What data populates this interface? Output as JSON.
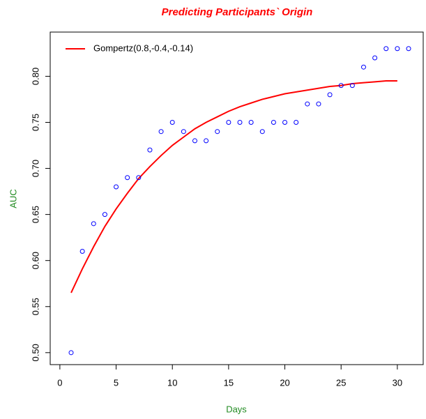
{
  "chart_data": {
    "type": "scatter",
    "title": "Predicting Participants` Origin",
    "xlabel": "Days",
    "ylabel": "AUC",
    "xlim": [
      -0.86,
      32.3
    ],
    "ylim": [
      0.487,
      0.848
    ],
    "xticks": [
      0,
      5,
      10,
      15,
      20,
      25,
      30
    ],
    "yticks": [
      {
        "value": 0.5,
        "label": "0.50"
      },
      0.55,
      {
        "value": 0.6,
        "label": "0.60"
      },
      0.65,
      {
        "value": 0.7,
        "label": "0.70"
      },
      0.75,
      {
        "value": 0.8,
        "label": "0.80"
      }
    ],
    "legend": "topleft",
    "series": [
      {
        "type": "line",
        "name": "Gompertz(0.8,-0.4,-0.14)",
        "color": "#ff0000",
        "x": [
          1,
          2,
          3,
          4,
          5,
          6,
          7,
          8,
          9,
          10,
          11,
          12,
          13,
          14,
          15,
          16,
          17,
          18,
          19,
          20,
          21,
          22,
          23,
          24,
          25,
          26,
          27,
          28,
          29,
          30
        ],
        "values": [
          0.565,
          0.591,
          0.615,
          0.637,
          0.656,
          0.673,
          0.689,
          0.702,
          0.714,
          0.725,
          0.734,
          0.743,
          0.75,
          0.756,
          0.762,
          0.767,
          0.771,
          0.775,
          0.778,
          0.781,
          0.783,
          0.785,
          0.787,
          0.789,
          0.79,
          0.792,
          0.793,
          0.794,
          0.795,
          0.795
        ]
      },
      {
        "type": "scatter",
        "color": "#0000ff",
        "x": [
          1,
          2,
          3,
          4,
          5,
          6,
          7,
          8,
          9,
          10,
          11,
          12,
          13,
          14,
          15,
          16,
          17,
          18,
          19,
          20,
          21,
          22,
          23,
          24,
          25,
          26,
          27,
          28,
          29,
          30,
          31
        ],
        "values": [
          0.5,
          0.61,
          0.64,
          0.65,
          0.68,
          0.69,
          0.69,
          0.72,
          0.74,
          0.75,
          0.74,
          0.73,
          0.73,
          0.74,
          0.75,
          0.75,
          0.75,
          0.74,
          0.75,
          0.75,
          0.75,
          0.77,
          0.77,
          0.78,
          0.79,
          0.79,
          0.81,
          0.82,
          0.83,
          0.83,
          0.83
        ]
      }
    ]
  }
}
